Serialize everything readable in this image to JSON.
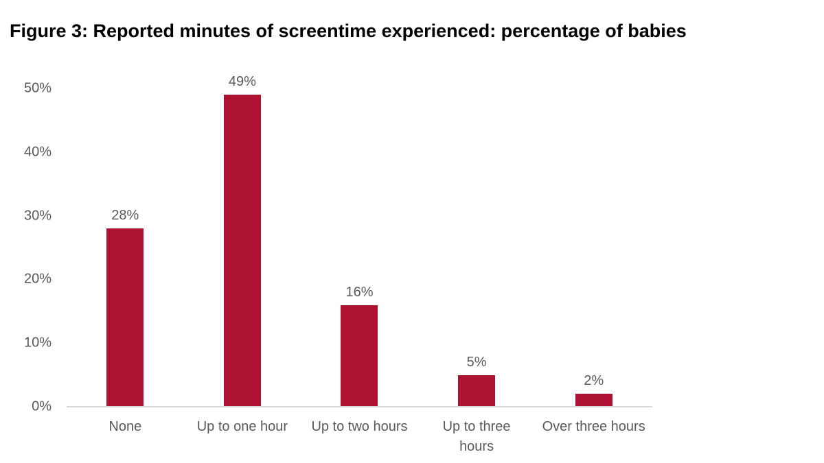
{
  "colors": {
    "bar": "#AE1231",
    "axis_line": "#D9D9D9",
    "tick_label": "#595959",
    "data_label": "#595959",
    "title": "#000000",
    "background": "#FFFFFF"
  },
  "chart_data": {
    "type": "bar",
    "title": "Figure 3: Reported minutes of screentime experienced: percentage of babies",
    "categories": [
      "None",
      "Up to one hour",
      "Up to two hours",
      "Up to three hours",
      "Over three hours"
    ],
    "category_label_lines": [
      [
        "None"
      ],
      [
        "Up to one hour"
      ],
      [
        "Up to two hours"
      ],
      [
        "Up to three",
        "hours"
      ],
      [
        "Over three hours"
      ]
    ],
    "values": [
      28,
      49,
      16,
      5,
      2
    ],
    "data_labels": [
      "28%",
      "49%",
      "16%",
      "5%",
      "2%"
    ],
    "xlabel": "",
    "ylabel": "",
    "ylim": [
      0,
      50
    ],
    "yticks": [
      {
        "value": 0,
        "label": "0%"
      },
      {
        "value": 10,
        "label": "10%"
      },
      {
        "value": 20,
        "label": "20%"
      },
      {
        "value": 30,
        "label": "30%"
      },
      {
        "value": 40,
        "label": "40%"
      },
      {
        "value": 50,
        "label": "50%"
      }
    ],
    "grid": false,
    "legend": null
  }
}
